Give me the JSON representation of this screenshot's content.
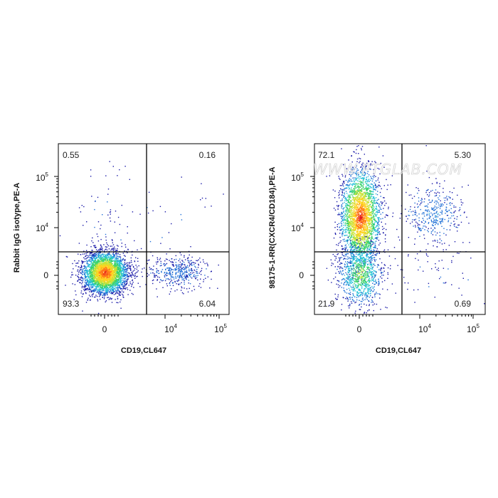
{
  "watermark": "WWW.PTGLAB.COM",
  "chart_data": [
    {
      "type": "scatter",
      "subtype": "flow-cytometry-pseudocolor-dot-plot",
      "xlabel": "CD19,CL647",
      "ylabel": "Rabbit IgG isotype,PE-A",
      "x_scale": "biexponential",
      "y_scale": "biexponential",
      "x_ticks": [
        {
          "base": "0",
          "exp": ""
        },
        {
          "base": "10",
          "exp": "4"
        },
        {
          "base": "10",
          "exp": "5"
        }
      ],
      "y_ticks": [
        {
          "base": "0",
          "exp": ""
        },
        {
          "base": "10",
          "exp": "4"
        },
        {
          "base": "10",
          "exp": "5"
        }
      ],
      "quadrants": {
        "upper_left": "0.55",
        "upper_right": "0.16",
        "lower_left": "93.3",
        "lower_right": "6.04"
      },
      "colormap": [
        "#1a1aa8",
        "#1f6fd6",
        "#25c2d8",
        "#3ad36a",
        "#c7e234",
        "#ffd21f",
        "#ff7a1a",
        "#e31a1c"
      ]
    },
    {
      "type": "scatter",
      "subtype": "flow-cytometry-pseudocolor-dot-plot",
      "xlabel": "CD19,CL647",
      "ylabel": "98175-1-RR(CXCR4/CD184),PE-A",
      "x_scale": "biexponential",
      "y_scale": "biexponential",
      "x_ticks": [
        {
          "base": "0",
          "exp": ""
        },
        {
          "base": "10",
          "exp": "4"
        },
        {
          "base": "10",
          "exp": "5"
        }
      ],
      "y_ticks": [
        {
          "base": "0",
          "exp": ""
        },
        {
          "base": "10",
          "exp": "4"
        },
        {
          "base": "10",
          "exp": "5"
        }
      ],
      "quadrants": {
        "upper_left": "72.1",
        "upper_right": "5.30",
        "lower_left": "21.9",
        "lower_right": "0.69"
      },
      "colormap": [
        "#1a1aa8",
        "#1f6fd6",
        "#25c2d8",
        "#3ad36a",
        "#c7e234",
        "#ffd21f",
        "#ff7a1a",
        "#e31a1c"
      ]
    }
  ]
}
